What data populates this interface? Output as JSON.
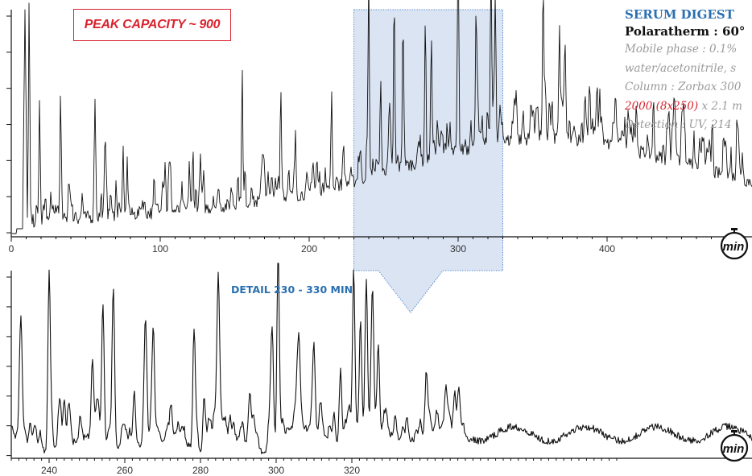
{
  "annotations": {
    "peak_capacity": "PEAK CAPACITY ~ 900",
    "detail_label": "DETAIL 230 - 330 MIN",
    "sample": "SERUM DIGEST",
    "method": "Polaratherm : 60°",
    "mobile_phase_1": "Mobile phase : 0.1%",
    "mobile_phase_2": "water/acetonitrile, s",
    "column_1": "Column : Zorbax 300",
    "column_2_red": "2000 (8x250)",
    "column_2_rest": " x 2.1 m",
    "detection": "Detection : UV, 214",
    "unit_icon_text": "min"
  },
  "colors": {
    "trace": "#111111",
    "highlight_fill": "#dbe4f3",
    "highlight_border": "#5b8fd0",
    "accent_red": "#d9232e",
    "accent_blue": "#2a6fb0"
  },
  "chart_data": [
    {
      "type": "line",
      "title": "",
      "xlabel": "",
      "ylabel": "",
      "xlim": [
        0,
        490
      ],
      "x_ticks": [
        0,
        100,
        200,
        300,
        400
      ],
      "highlight_range": [
        230,
        330
      ],
      "grid": false,
      "peaks": [
        {
          "x": 12,
          "y": 1.0
        },
        {
          "x": 19,
          "y": 0.52
        },
        {
          "x": 33,
          "y": 0.45
        },
        {
          "x": 56,
          "y": 0.36
        },
        {
          "x": 63,
          "y": 0.25
        },
        {
          "x": 75,
          "y": 0.3
        },
        {
          "x": 122,
          "y": 0.27
        },
        {
          "x": 155,
          "y": 0.62
        },
        {
          "x": 181,
          "y": 0.47
        },
        {
          "x": 215,
          "y": 0.38
        },
        {
          "x": 240,
          "y": 0.85
        },
        {
          "x": 248,
          "y": 0.45
        },
        {
          "x": 257,
          "y": 0.72
        },
        {
          "x": 263,
          "y": 0.66
        },
        {
          "x": 278,
          "y": 0.58
        },
        {
          "x": 282,
          "y": 0.6
        },
        {
          "x": 300,
          "y": 0.84
        },
        {
          "x": 312,
          "y": 0.62
        },
        {
          "x": 322,
          "y": 0.74
        },
        {
          "x": 325,
          "y": 0.55
        },
        {
          "x": 357,
          "y": 0.52
        },
        {
          "x": 368,
          "y": 0.5
        },
        {
          "x": 395,
          "y": 0.25
        },
        {
          "x": 445,
          "y": 0.2
        }
      ]
    },
    {
      "type": "line",
      "title": "",
      "xlabel": "",
      "ylabel": "",
      "xlim": [
        230,
        330
      ],
      "x_ticks": [
        240,
        260,
        280,
        300,
        320
      ],
      "grid": false,
      "peaks": [
        {
          "x": 232.5,
          "y": 0.55
        },
        {
          "x": 240,
          "y": 1.0
        },
        {
          "x": 244,
          "y": 0.28
        },
        {
          "x": 251.5,
          "y": 0.33
        },
        {
          "x": 254.2,
          "y": 0.75
        },
        {
          "x": 257,
          "y": 0.85
        },
        {
          "x": 262.5,
          "y": 0.33
        },
        {
          "x": 265.5,
          "y": 0.58
        },
        {
          "x": 267.5,
          "y": 0.45
        },
        {
          "x": 278.3,
          "y": 0.7
        },
        {
          "x": 281,
          "y": 0.3
        },
        {
          "x": 284.7,
          "y": 0.76
        },
        {
          "x": 293,
          "y": 0.25
        },
        {
          "x": 299,
          "y": 0.6
        },
        {
          "x": 300.5,
          "y": 0.95
        },
        {
          "x": 306,
          "y": 0.42
        },
        {
          "x": 310,
          "y": 0.32
        },
        {
          "x": 317,
          "y": 0.4
        },
        {
          "x": 320.5,
          "y": 0.88
        },
        {
          "x": 322.3,
          "y": 0.55
        },
        {
          "x": 323.8,
          "y": 0.8
        },
        {
          "x": 325.5,
          "y": 0.58
        },
        {
          "x": 327,
          "y": 0.45
        }
      ]
    }
  ]
}
